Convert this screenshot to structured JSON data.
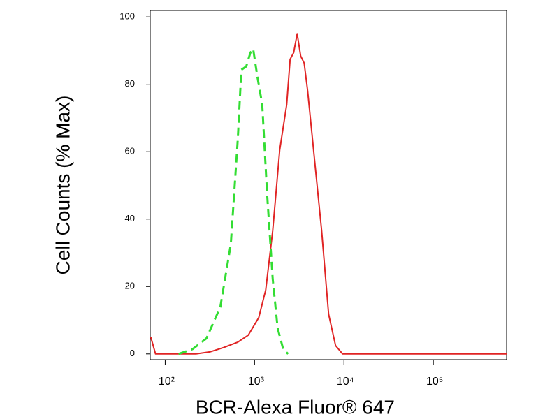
{
  "chart_data": {
    "type": "line",
    "x_label": "BCR-Alexa Fluor® 647",
    "y_label": "Cell Counts (% Max)",
    "xscale": "log",
    "xlim": [
      68,
      660000
    ],
    "ylim": [
      -1.7,
      101.9
    ],
    "xticks": [
      {
        "value": 100,
        "label": "10²"
      },
      {
        "value": 1000,
        "label": "10³"
      },
      {
        "value": 10000,
        "label": "10⁴"
      },
      {
        "value": 100000,
        "label": "10⁵"
      }
    ],
    "yticks": [
      0,
      20,
      40,
      60,
      80,
      100
    ],
    "grid": false,
    "series": [
      {
        "color": "#e02424",
        "style": "solid",
        "x": [
          69,
          78,
          221,
          316,
          453,
          649,
          851,
          1114,
          1334,
          1596,
          1911,
          2287,
          2500,
          2738,
          2997,
          3281,
          3590,
          3926,
          4698,
          5623,
          6730,
          8054,
          9640,
          660000
        ],
        "values": [
          5,
          0,
          0,
          0.6,
          1.9,
          3.5,
          5.6,
          10.8,
          19,
          36.6,
          60.5,
          74,
          87.4,
          89.4,
          95,
          88.4,
          86.3,
          78,
          57.3,
          36.6,
          11.8,
          2.5,
          0,
          0
        ]
      },
      {
        "color": "#33dd33",
        "style": "dashed",
        "x": [
          141,
          202,
          289,
          414,
          542,
          649,
          711,
          806,
          898,
          964,
          1075,
          1219,
          1384,
          1596,
          1811,
          2090,
          2371
        ],
        "values": [
          0,
          1.4,
          4.6,
          13.9,
          32.5,
          63.6,
          84.3,
          85.3,
          89.4,
          90.5,
          82.2,
          74,
          47,
          22.2,
          7.7,
          1.4,
          0
        ]
      }
    ]
  }
}
